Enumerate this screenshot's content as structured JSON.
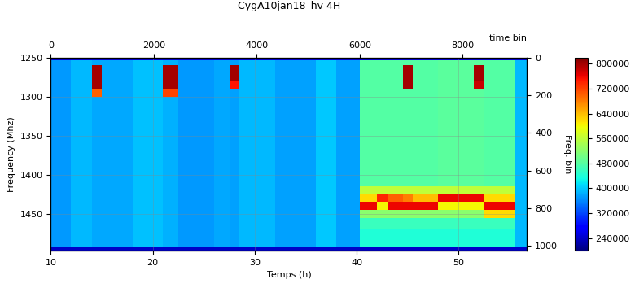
{
  "chart_data": {
    "type": "heatmap",
    "title": "CygA10jan18_hv 4H",
    "x_label": "Temps (h)",
    "y_label": "Frequency (Mhz)",
    "x2_label": "time bin",
    "y2_label": "Freq. bin",
    "x": [
      10,
      12,
      14,
      15,
      18,
      21,
      22.5,
      26,
      27.5,
      28.5,
      32,
      36,
      38,
      40.3,
      42,
      43,
      44.5,
      45.5,
      48,
      51.5,
      52.5,
      55.5,
      56.7
    ],
    "y": [
      1250,
      1253,
      1260,
      1270,
      1280,
      1290,
      1300,
      1320,
      1340,
      1360,
      1380,
      1400,
      1415,
      1425,
      1435,
      1445,
      1455,
      1470,
      1493,
      1497
    ],
    "xlim": [
      10,
      56.7
    ],
    "xticks": [
      10,
      20,
      30,
      40,
      50
    ],
    "ylim": [
      1497,
      1250
    ],
    "yticks": [
      1250,
      1300,
      1350,
      1400,
      1450
    ],
    "x2lim": [
      0,
      9250
    ],
    "x2ticks": [
      0,
      2000,
      4000,
      6000,
      8000
    ],
    "y2lim": [
      1024,
      0
    ],
    "y2ticks": [
      0,
      200,
      400,
      600,
      800,
      1000
    ],
    "grid": true,
    "colorbar": {
      "range": [
        200000,
        820000
      ],
      "ticks": [
        240000,
        320000,
        400000,
        480000,
        560000,
        640000,
        720000,
        800000
      ]
    },
    "cells": [
      [
        240000,
        240000,
        240000,
        240000,
        240000,
        240000,
        240000,
        240000,
        240000,
        240000,
        240000,
        240000,
        240000,
        240000,
        240000,
        240000,
        240000,
        240000,
        240000,
        240000,
        240000,
        240000
      ],
      [
        370000,
        390000,
        380000,
        380000,
        395000,
        385000,
        370000,
        380000,
        375000,
        390000,
        375000,
        400000,
        375000,
        480000,
        480000,
        480000,
        480000,
        480000,
        485000,
        485000,
        480000,
        390000
      ],
      [
        370000,
        390000,
        800000,
        380000,
        395000,
        800000,
        370000,
        380000,
        800000,
        390000,
        375000,
        400000,
        375000,
        480000,
        480000,
        480000,
        800000,
        480000,
        485000,
        800000,
        480000,
        390000
      ],
      [
        370000,
        390000,
        800000,
        380000,
        395000,
        800000,
        370000,
        380000,
        800000,
        390000,
        375000,
        400000,
        375000,
        480000,
        480000,
        480000,
        800000,
        480000,
        485000,
        800000,
        480000,
        390000
      ],
      [
        370000,
        390000,
        800000,
        380000,
        395000,
        800000,
        370000,
        380000,
        750000,
        390000,
        375000,
        400000,
        375000,
        480000,
        480000,
        480000,
        800000,
        480000,
        485000,
        780000,
        480000,
        390000
      ],
      [
        370000,
        390000,
        700000,
        380000,
        395000,
        720000,
        370000,
        380000,
        375000,
        390000,
        375000,
        400000,
        375000,
        480000,
        480000,
        480000,
        480000,
        480000,
        485000,
        485000,
        480000,
        390000
      ],
      [
        370000,
        390000,
        380000,
        380000,
        395000,
        385000,
        370000,
        380000,
        375000,
        390000,
        375000,
        400000,
        375000,
        480000,
        480000,
        480000,
        480000,
        480000,
        485000,
        485000,
        480000,
        390000
      ],
      [
        370000,
        390000,
        380000,
        380000,
        395000,
        385000,
        370000,
        380000,
        375000,
        390000,
        375000,
        400000,
        375000,
        480000,
        480000,
        480000,
        480000,
        480000,
        485000,
        485000,
        480000,
        390000
      ],
      [
        370000,
        390000,
        380000,
        380000,
        395000,
        385000,
        370000,
        380000,
        375000,
        390000,
        375000,
        400000,
        375000,
        480000,
        480000,
        480000,
        480000,
        480000,
        485000,
        485000,
        480000,
        390000
      ],
      [
        370000,
        390000,
        380000,
        380000,
        395000,
        385000,
        370000,
        380000,
        375000,
        390000,
        375000,
        400000,
        375000,
        480000,
        480000,
        480000,
        480000,
        480000,
        485000,
        485000,
        480000,
        390000
      ],
      [
        370000,
        390000,
        380000,
        380000,
        395000,
        385000,
        370000,
        380000,
        375000,
        390000,
        375000,
        400000,
        375000,
        480000,
        480000,
        480000,
        480000,
        480000,
        485000,
        485000,
        480000,
        390000
      ],
      [
        370000,
        390000,
        380000,
        380000,
        395000,
        385000,
        370000,
        380000,
        375000,
        390000,
        375000,
        400000,
        375000,
        480000,
        480000,
        480000,
        480000,
        480000,
        485000,
        485000,
        480000,
        390000
      ],
      [
        370000,
        390000,
        380000,
        380000,
        395000,
        385000,
        370000,
        380000,
        375000,
        390000,
        375000,
        400000,
        375000,
        560000,
        560000,
        560000,
        560000,
        560000,
        560000,
        560000,
        560000,
        390000
      ],
      [
        370000,
        390000,
        380000,
        380000,
        395000,
        385000,
        370000,
        380000,
        375000,
        390000,
        375000,
        400000,
        375000,
        620000,
        740000,
        700000,
        680000,
        640000,
        760000,
        760000,
        620000,
        390000
      ],
      [
        370000,
        390000,
        380000,
        380000,
        395000,
        385000,
        370000,
        380000,
        375000,
        390000,
        375000,
        400000,
        375000,
        760000,
        600000,
        760000,
        760000,
        760000,
        600000,
        600000,
        760000,
        390000
      ],
      [
        370000,
        390000,
        380000,
        380000,
        395000,
        385000,
        370000,
        380000,
        375000,
        390000,
        375000,
        400000,
        375000,
        520000,
        520000,
        520000,
        520000,
        520000,
        520000,
        520000,
        620000,
        390000
      ],
      [
        370000,
        390000,
        380000,
        380000,
        395000,
        385000,
        370000,
        380000,
        375000,
        390000,
        375000,
        400000,
        375000,
        460000,
        460000,
        460000,
        460000,
        460000,
        460000,
        460000,
        460000,
        390000
      ],
      [
        370000,
        390000,
        380000,
        380000,
        395000,
        385000,
        370000,
        380000,
        375000,
        390000,
        375000,
        400000,
        375000,
        440000,
        440000,
        440000,
        440000,
        440000,
        440000,
        440000,
        440000,
        390000
      ],
      [
        240000,
        240000,
        240000,
        240000,
        240000,
        240000,
        240000,
        240000,
        240000,
        240000,
        240000,
        240000,
        240000,
        240000,
        240000,
        240000,
        240000,
        240000,
        240000,
        240000,
        240000,
        240000
      ]
    ]
  }
}
